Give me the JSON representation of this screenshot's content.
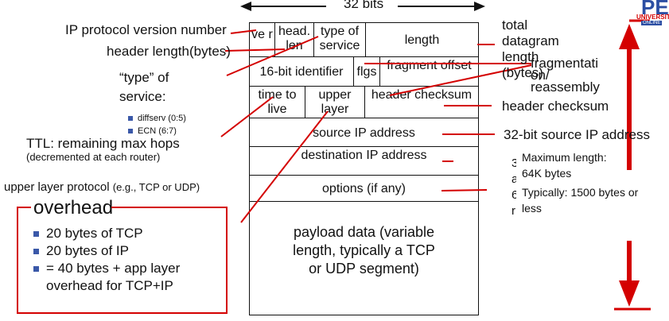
{
  "width_label": "32 bits",
  "fields": {
    "ver": "ve r",
    "head_len": "head. len",
    "tos": "type of service",
    "length": "length",
    "identifier": "16-bit identifier",
    "flags": "flgs",
    "frag_offset": "fragment offset",
    "ttl": "time to live",
    "upper_layer": "upper layer",
    "checksum": "header checksum",
    "src": "source IP address",
    "dst": "destination IP address",
    "options": "options (if any)",
    "payload": "payload data (variable length, typically a TCP or UDP segment)"
  },
  "labels_left": {
    "version": "IP protocol version number",
    "header_length": "header length(bytes)",
    "service_title": "“type” of service:",
    "diffserv": "diffserv (0:5)",
    "ecn": "ECN (6:7)",
    "ttl_line1": "TTL: remaining  max hops",
    "ttl_line2": "(decremented at each router)",
    "upper_proto_main": "upper layer protocol ",
    "upper_proto_eg": "(e.g., TCP or UDP)"
  },
  "labels_right": {
    "total_length": "total datagram length (bytes)",
    "fragmentation": "fragmentati on/ reassembly",
    "header_checksum": "header checksum",
    "src_ip": "32-bit source IP address",
    "dst_partial": "3 a 6 r",
    "max_length": "Maximum length: 64K bytes",
    "typically": "Typically: 1500 bytes or less"
  },
  "overhead": {
    "title": "overhead",
    "items": [
      "20 bytes of TCP",
      "20 bytes of IP",
      "= 40 bytes + app layer overhead for TCP+IP"
    ]
  },
  "logo": {
    "main": "PES",
    "sub1": "UNIVERSIT",
    "sub2": "ONLINE"
  },
  "colors": {
    "accent": "#d40000",
    "bullet": "#3a58a8",
    "logo_blue": "#2c4ea3"
  }
}
